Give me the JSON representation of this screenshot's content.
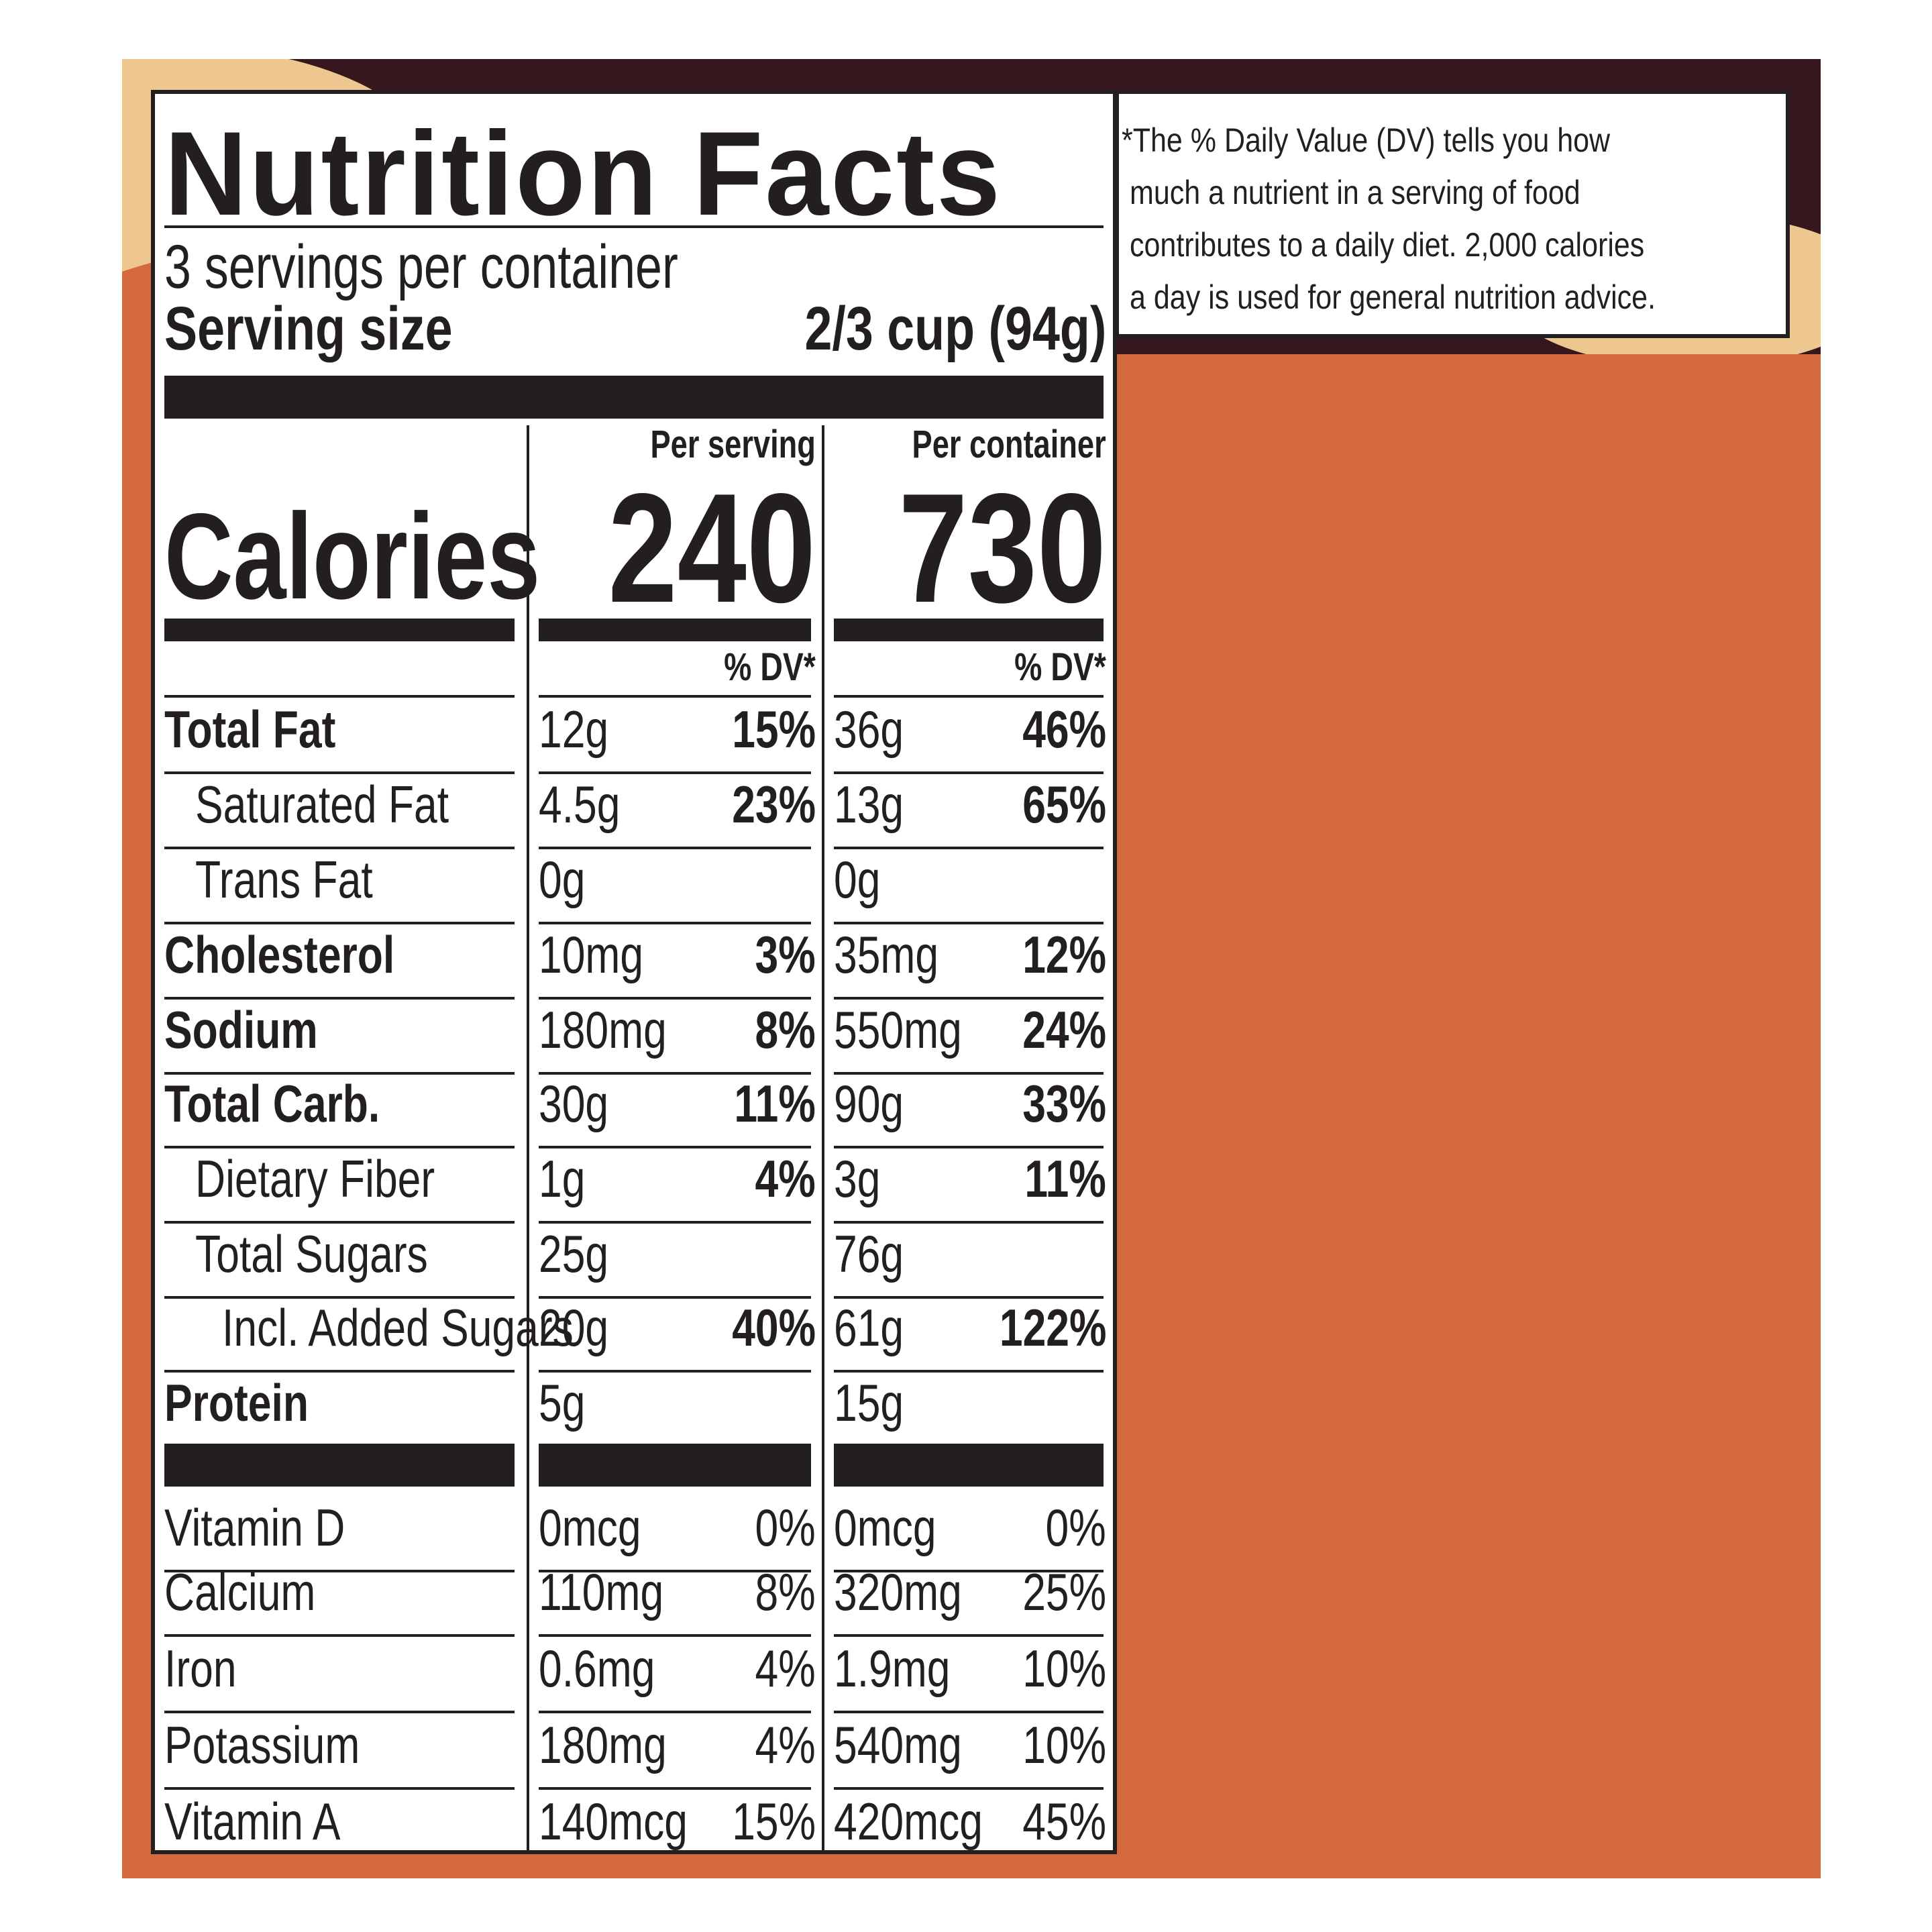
{
  "label": {
    "title": "Nutrition Facts",
    "servings_per_container": "3 servings per container",
    "serving_size_label": "Serving size",
    "serving_size_value": "2/3 cup (94g)",
    "per_serving_header": "Per serving",
    "per_container_header": "Per container",
    "calories_label": "Calories",
    "calories_per_serving": "240",
    "calories_per_container": "730",
    "dv_header": "% DV*",
    "nutrients": [
      {
        "name": "Total Fat",
        "serving_amount": "12g",
        "serving_dv": "15%",
        "container_amount": "36g",
        "container_dv": "46%"
      },
      {
        "name": "Saturated Fat",
        "serving_amount": "4.5g",
        "serving_dv": "23%",
        "container_amount": "13g",
        "container_dv": "65%"
      },
      {
        "name": "Trans Fat",
        "serving_amount": "0g",
        "serving_dv": "",
        "container_amount": "0g",
        "container_dv": ""
      },
      {
        "name": "Cholesterol",
        "serving_amount": "10mg",
        "serving_dv": "3%",
        "container_amount": "35mg",
        "container_dv": "12%"
      },
      {
        "name": "Sodium",
        "serving_amount": "180mg",
        "serving_dv": "8%",
        "container_amount": "550mg",
        "container_dv": "24%"
      },
      {
        "name": "Total Carb.",
        "serving_amount": "30g",
        "serving_dv": "11%",
        "container_amount": "90g",
        "container_dv": "33%"
      },
      {
        "name": "Dietary Fiber",
        "serving_amount": "1g",
        "serving_dv": "4%",
        "container_amount": "3g",
        "container_dv": "11%"
      },
      {
        "name": "Total Sugars",
        "serving_amount": "25g",
        "serving_dv": "",
        "container_amount": "76g",
        "container_dv": ""
      },
      {
        "name": "Incl. Added Sugars",
        "serving_amount": "20g",
        "serving_dv": "40%",
        "container_amount": "61g",
        "container_dv": "122%"
      },
      {
        "name": "Protein",
        "serving_amount": "5g",
        "serving_dv": "",
        "container_amount": "15g",
        "container_dv": ""
      }
    ],
    "vitamins": [
      {
        "name": "Vitamin D",
        "serving_amount": "0mcg",
        "serving_dv": "0%",
        "container_amount": "0mcg",
        "container_dv": "0%"
      },
      {
        "name": "Calcium",
        "serving_amount": "110mg",
        "serving_dv": "8%",
        "container_amount": "320mg",
        "container_dv": "25%"
      },
      {
        "name": "Iron",
        "serving_amount": "0.6mg",
        "serving_dv": "4%",
        "container_amount": "1.9mg",
        "container_dv": "10%"
      },
      {
        "name": "Potassium",
        "serving_amount": "180mg",
        "serving_dv": "4%",
        "container_amount": "540mg",
        "container_dv": "10%"
      },
      {
        "name": "Vitamin A",
        "serving_amount": "140mcg",
        "serving_dv": "15%",
        "container_amount": "420mcg",
        "container_dv": "45%"
      }
    ]
  },
  "footnote": {
    "lines": [
      "*The % Daily Value (DV) tells you how",
      "much a nutrient in a serving of food",
      "contributes to a daily diet. 2,000 calories",
      "a day is used for general nutrition advice."
    ]
  },
  "colors": {
    "ink": "#231F20",
    "background_orange": "#D4693F",
    "background_dark": "#35171D",
    "background_cream": "#EDC690"
  }
}
